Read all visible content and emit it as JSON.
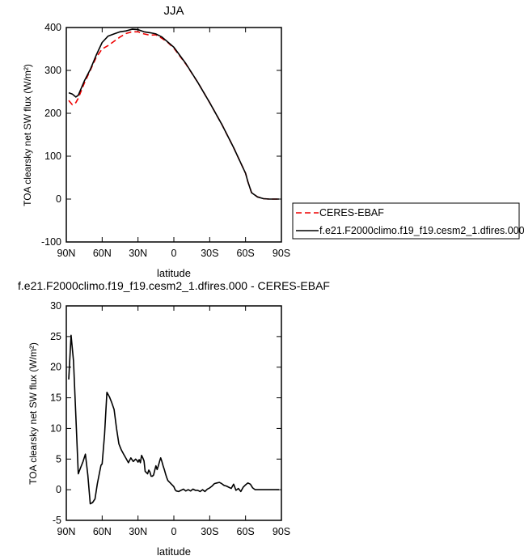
{
  "chart_data": [
    {
      "type": "line",
      "title": "JJA",
      "xlabel": "latitude",
      "ylabel": "TOA clearsky net SW flux (W/m²)",
      "ylim": [
        -100,
        400
      ],
      "yticks": [
        -100,
        0,
        100,
        200,
        300,
        400
      ],
      "xlim": [
        90,
        -90
      ],
      "xticks": [
        90,
        60,
        30,
        0,
        -30,
        -60,
        -90
      ],
      "xtick_labels": [
        "90N",
        "60N",
        "30N",
        "0",
        "30S",
        "60S",
        "90S"
      ],
      "legend": "right, below plot",
      "colors": {
        "CERES-EBAF": "#ee0000",
        "model": "#000000"
      },
      "series": [
        {
          "name": "CERES-EBAF",
          "style": "dashed",
          "x": [
            88,
            85,
            82,
            80,
            75,
            70,
            65,
            60,
            55,
            50,
            45,
            40,
            35,
            30,
            25,
            20,
            15,
            10,
            5,
            0,
            -10,
            -20,
            -30,
            -40,
            -50,
            -60,
            -62,
            -65,
            -70,
            -75,
            -80,
            -85,
            -88
          ],
          "y": [
            230,
            220,
            225,
            235,
            270,
            300,
            330,
            350,
            358,
            368,
            378,
            386,
            390,
            390,
            385,
            382,
            383,
            375,
            365,
            352,
            315,
            272,
            225,
            175,
            120,
            60,
            40,
            15,
            5,
            1,
            0,
            0,
            0
          ]
        },
        {
          "name": "f.e21.F2000climo.f19_f19.cesm2_1.dfires.000",
          "style": "solid",
          "x": [
            88,
            85,
            82,
            80,
            75,
            70,
            65,
            60,
            55,
            50,
            45,
            40,
            35,
            30,
            25,
            20,
            15,
            10,
            5,
            0,
            -10,
            -20,
            -30,
            -40,
            -50,
            -60,
            -62,
            -65,
            -70,
            -75,
            -80,
            -85,
            -88
          ],
          "y": [
            248,
            245,
            238,
            242,
            275,
            302,
            335,
            365,
            380,
            385,
            390,
            392,
            396,
            395,
            390,
            388,
            385,
            378,
            366,
            354,
            316,
            272,
            225,
            175,
            120,
            60,
            40,
            15,
            5,
            1,
            0,
            0,
            0
          ]
        }
      ]
    },
    {
      "type": "line",
      "title": "f.e21.F2000climo.f19_f19.cesm2_1.dfires.000 - CERES-EBAF",
      "xlabel": "latitude",
      "ylabel": "TOA clearsky net SW flux (W/m²)",
      "ylim": [
        -5,
        30
      ],
      "yticks": [
        -5,
        0,
        5,
        10,
        15,
        20,
        25,
        30
      ],
      "xlim": [
        90,
        -90
      ],
      "xticks": [
        90,
        60,
        30,
        0,
        -30,
        -60,
        -90
      ],
      "xtick_labels": [
        "90N",
        "60N",
        "30N",
        "0",
        "30S",
        "60S",
        "90S"
      ],
      "colors": {
        "difference": "#000000"
      },
      "series": [
        {
          "name": "",
          "style": "solid",
          "x": [
            88,
            86,
            84,
            82,
            80,
            78,
            76,
            74,
            72,
            70,
            68,
            66,
            64,
            62,
            61,
            60,
            58,
            56,
            54,
            52,
            50,
            48,
            46,
            44,
            42,
            40,
            38,
            36,
            34,
            32,
            31,
            30,
            29,
            28,
            27,
            26,
            25,
            24,
            23,
            22,
            21,
            20,
            19,
            18,
            17,
            16,
            15,
            14,
            13,
            12,
            11,
            10,
            9,
            8,
            7,
            6,
            5,
            4,
            3,
            2,
            1,
            0,
            -1,
            -2,
            -4,
            -6,
            -8,
            -10,
            -12,
            -14,
            -16,
            -18,
            -20,
            -22,
            -24,
            -26,
            -28,
            -30,
            -32,
            -34,
            -36,
            -38,
            -40,
            -42,
            -44,
            -46,
            -48,
            -50,
            -52,
            -54,
            -56,
            -58,
            -60,
            -62,
            -64,
            -66,
            -68,
            -70,
            -72,
            -74,
            -76,
            -78,
            -80,
            -82,
            -84,
            -86,
            -88
          ],
          "y": [
            18,
            25.2,
            21,
            12,
            2.6,
            3.6,
            4.6,
            5.8,
            2.4,
            -2.3,
            -2.1,
            -1.5,
            1.0,
            3.0,
            4.0,
            4.2,
            9,
            15.9,
            15.2,
            14.2,
            13.1,
            10,
            7.5,
            6.5,
            5.8,
            5.1,
            4.4,
            5.2,
            4.6,
            5.0,
            4.8,
            4.5,
            4.9,
            4.4,
            5.6,
            5.2,
            4.7,
            3.0,
            2.8,
            2.6,
            3.2,
            2.9,
            2.2,
            2.2,
            2.4,
            3.2,
            3.9,
            3.3,
            3.9,
            4.6,
            5.2,
            4.6,
            3.9,
            3.3,
            2.6,
            2.0,
            1.5,
            1.3,
            1.1,
            0.9,
            0.7,
            0.5,
            0.0,
            -0.2,
            -0.3,
            -0.1,
            0.1,
            -0.2,
            0.0,
            -0.2,
            0.1,
            -0.1,
            -0.1,
            -0.3,
            0.0,
            -0.3,
            0.1,
            0.3,
            0.6,
            1.0,
            1.1,
            1.2,
            1.0,
            0.7,
            0.6,
            0.4,
            0.2,
            0.9,
            -0.1,
            0.2,
            -0.3,
            0.4,
            0.8,
            1.1,
            0.9,
            0.3,
            0.0,
            0.0,
            0.0,
            0.0,
            0.0,
            0.0,
            0.0,
            0.0,
            0.0,
            0.0,
            0.0
          ]
        }
      ]
    }
  ]
}
